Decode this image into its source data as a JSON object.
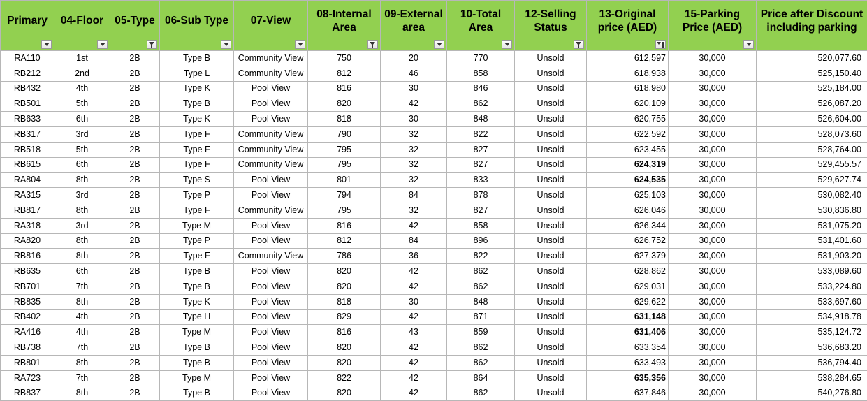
{
  "columns": [
    {
      "label": "Primary",
      "filter": "dropdown"
    },
    {
      "label": "04-Floor",
      "filter": "dropdown"
    },
    {
      "label": "05-Type",
      "filter": "filtered"
    },
    {
      "label": "06-Sub Type",
      "filter": "dropdown"
    },
    {
      "label": "07-View",
      "filter": "dropdown"
    },
    {
      "label": "08-Internal Area",
      "filter": "filtered"
    },
    {
      "label": "09-External area",
      "filter": "dropdown"
    },
    {
      "label": "10-Total Area",
      "filter": "dropdown"
    },
    {
      "label": "12-Selling Status",
      "filter": "filtered"
    },
    {
      "label": "13-Original price (AED)",
      "filter": "sorted"
    },
    {
      "label": "15-Parking Price (AED)",
      "filter": "dropdown"
    },
    {
      "label": "Price after Discount including parking",
      "filter": "none"
    }
  ],
  "rows": [
    {
      "primary": "RA110",
      "floor": "1st",
      "type": "2B",
      "subtype": "Type B",
      "view": "Community View",
      "internal": "750",
      "external": "20",
      "total": "770",
      "status": "Unsold",
      "price": "612,597",
      "parking": "30,000",
      "discounted": "520,077.60",
      "bold": false
    },
    {
      "primary": "RB212",
      "floor": "2nd",
      "type": "2B",
      "subtype": "Type L",
      "view": "Community View",
      "internal": "812",
      "external": "46",
      "total": "858",
      "status": "Unsold",
      "price": "618,938",
      "parking": "30,000",
      "discounted": "525,150.40",
      "bold": false
    },
    {
      "primary": "RB432",
      "floor": "4th",
      "type": "2B",
      "subtype": "Type K",
      "view": "Pool View",
      "internal": "816",
      "external": "30",
      "total": "846",
      "status": "Unsold",
      "price": "618,980",
      "parking": "30,000",
      "discounted": "525,184.00",
      "bold": false
    },
    {
      "primary": "RB501",
      "floor": "5th",
      "type": "2B",
      "subtype": "Type B",
      "view": "Pool View",
      "internal": "820",
      "external": "42",
      "total": "862",
      "status": "Unsold",
      "price": "620,109",
      "parking": "30,000",
      "discounted": "526,087.20",
      "bold": false
    },
    {
      "primary": "RB633",
      "floor": "6th",
      "type": "2B",
      "subtype": "Type K",
      "view": "Pool View",
      "internal": "818",
      "external": "30",
      "total": "848",
      "status": "Unsold",
      "price": "620,755",
      "parking": "30,000",
      "discounted": "526,604.00",
      "bold": false
    },
    {
      "primary": "RB317",
      "floor": "3rd",
      "type": "2B",
      "subtype": "Type F",
      "view": "Community View",
      "internal": "790",
      "external": "32",
      "total": "822",
      "status": "Unsold",
      "price": "622,592",
      "parking": "30,000",
      "discounted": "528,073.60",
      "bold": false
    },
    {
      "primary": "RB518",
      "floor": "5th",
      "type": "2B",
      "subtype": "Type F",
      "view": "Community View",
      "internal": "795",
      "external": "32",
      "total": "827",
      "status": "Unsold",
      "price": "623,455",
      "parking": "30,000",
      "discounted": "528,764.00",
      "bold": false
    },
    {
      "primary": "RB615",
      "floor": "6th",
      "type": "2B",
      "subtype": "Type F",
      "view": "Community View",
      "internal": "795",
      "external": "32",
      "total": "827",
      "status": "Unsold",
      "price": "624,319",
      "parking": "30,000",
      "discounted": "529,455.57",
      "bold": true
    },
    {
      "primary": "RA804",
      "floor": "8th",
      "type": "2B",
      "subtype": "Type S",
      "view": "Pool View",
      "internal": "801",
      "external": "32",
      "total": "833",
      "status": "Unsold",
      "price": "624,535",
      "parking": "30,000",
      "discounted": "529,627.74",
      "bold": true
    },
    {
      "primary": "RA315",
      "floor": "3rd",
      "type": "2B",
      "subtype": "Type P",
      "view": "Pool View",
      "internal": "794",
      "external": "84",
      "total": "878",
      "status": "Unsold",
      "price": "625,103",
      "parking": "30,000",
      "discounted": "530,082.40",
      "bold": false
    },
    {
      "primary": "RB817",
      "floor": "8th",
      "type": "2B",
      "subtype": "Type F",
      "view": "Community View",
      "internal": "795",
      "external": "32",
      "total": "827",
      "status": "Unsold",
      "price": "626,046",
      "parking": "30,000",
      "discounted": "530,836.80",
      "bold": false
    },
    {
      "primary": "RA318",
      "floor": "3rd",
      "type": "2B",
      "subtype": "Type M",
      "view": "Pool View",
      "internal": "816",
      "external": "42",
      "total": "858",
      "status": "Unsold",
      "price": "626,344",
      "parking": "30,000",
      "discounted": "531,075.20",
      "bold": false
    },
    {
      "primary": "RA820",
      "floor": "8th",
      "type": "2B",
      "subtype": "Type P",
      "view": "Pool View",
      "internal": "812",
      "external": "84",
      "total": "896",
      "status": "Unsold",
      "price": "626,752",
      "parking": "30,000",
      "discounted": "531,401.60",
      "bold": false
    },
    {
      "primary": "RB816",
      "floor": "8th",
      "type": "2B",
      "subtype": "Type F",
      "view": "Community View",
      "internal": "786",
      "external": "36",
      "total": "822",
      "status": "Unsold",
      "price": "627,379",
      "parking": "30,000",
      "discounted": "531,903.20",
      "bold": false
    },
    {
      "primary": "RB635",
      "floor": "6th",
      "type": "2B",
      "subtype": "Type B",
      "view": "Pool View",
      "internal": "820",
      "external": "42",
      "total": "862",
      "status": "Unsold",
      "price": "628,862",
      "parking": "30,000",
      "discounted": "533,089.60",
      "bold": false
    },
    {
      "primary": "RB701",
      "floor": "7th",
      "type": "2B",
      "subtype": "Type B",
      "view": "Pool View",
      "internal": "820",
      "external": "42",
      "total": "862",
      "status": "Unsold",
      "price": "629,031",
      "parking": "30,000",
      "discounted": "533,224.80",
      "bold": false
    },
    {
      "primary": "RB835",
      "floor": "8th",
      "type": "2B",
      "subtype": "Type K",
      "view": "Pool View",
      "internal": "818",
      "external": "30",
      "total": "848",
      "status": "Unsold",
      "price": "629,622",
      "parking": "30,000",
      "discounted": "533,697.60",
      "bold": false
    },
    {
      "primary": "RB402",
      "floor": "4th",
      "type": "2B",
      "subtype": "Type H",
      "view": "Pool View",
      "internal": "829",
      "external": "42",
      "total": "871",
      "status": "Unsold",
      "price": "631,148",
      "parking": "30,000",
      "discounted": "534,918.78",
      "bold": true
    },
    {
      "primary": "RA416",
      "floor": "4th",
      "type": "2B",
      "subtype": "Type M",
      "view": "Pool View",
      "internal": "816",
      "external": "43",
      "total": "859",
      "status": "Unsold",
      "price": "631,406",
      "parking": "30,000",
      "discounted": "535,124.72",
      "bold": true
    },
    {
      "primary": "RB738",
      "floor": "7th",
      "type": "2B",
      "subtype": "Type B",
      "view": "Pool View",
      "internal": "820",
      "external": "42",
      "total": "862",
      "status": "Unsold",
      "price": "633,354",
      "parking": "30,000",
      "discounted": "536,683.20",
      "bold": false
    },
    {
      "primary": "RB801",
      "floor": "8th",
      "type": "2B",
      "subtype": "Type B",
      "view": "Pool View",
      "internal": "820",
      "external": "42",
      "total": "862",
      "status": "Unsold",
      "price": "633,493",
      "parking": "30,000",
      "discounted": "536,794.40",
      "bold": false
    },
    {
      "primary": "RA723",
      "floor": "7th",
      "type": "2B",
      "subtype": "Type M",
      "view": "Pool View",
      "internal": "822",
      "external": "42",
      "total": "864",
      "status": "Unsold",
      "price": "635,356",
      "parking": "30,000",
      "discounted": "538,284.65",
      "bold": true
    },
    {
      "primary": "RB837",
      "floor": "8th",
      "type": "2B",
      "subtype": "Type B",
      "view": "Pool View",
      "internal": "820",
      "external": "42",
      "total": "862",
      "status": "Unsold",
      "price": "637,846",
      "parking": "30,000",
      "discounted": "540,276.80",
      "bold": false
    }
  ],
  "colors": {
    "header_bg": "#92d050",
    "grid": "#b7b7b7",
    "parking_border": "#000000"
  },
  "icons": {
    "dropdown": "dropdown-arrow-icon",
    "filtered": "filter-funnel-icon",
    "sorted": "sort-descending-icon"
  }
}
